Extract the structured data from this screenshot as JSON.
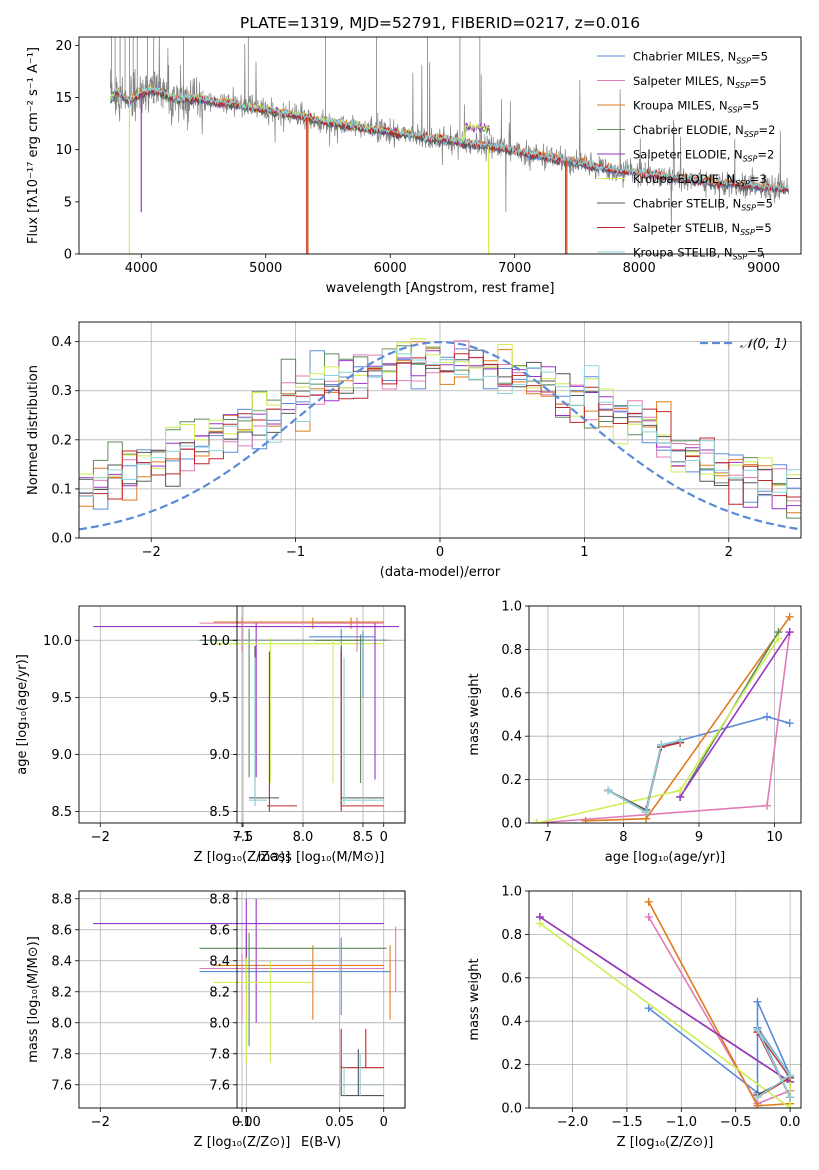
{
  "title": "PLATE=1319, MJD=52791, FIBERID=0217, z=0.016",
  "colors": {
    "chabrier_miles": "#5b8bd8",
    "salpeter_miles": "#e07bb6",
    "kroupa_miles": "#e07b1f",
    "chabrier_elodie": "#5f8c5a",
    "salpeter_elodie": "#9b35c6",
    "kroupa_elodie": "#cdee55",
    "chabrier_stelib": "#555555",
    "salpeter_stelib": "#c0262a",
    "kroupa_stelib": "#8fd3d8",
    "data": "#808080",
    "normal": "#5b8bd8"
  },
  "legend": [
    {
      "key": "chabrier_miles",
      "label": "Chabrier MILES, N",
      "sub": "SSP",
      "val": "=5"
    },
    {
      "key": "salpeter_miles",
      "label": "Salpeter MILES, N",
      "sub": "SSP",
      "val": "=5"
    },
    {
      "key": "kroupa_miles",
      "label": "Kroupa MILES, N",
      "sub": "SSP",
      "val": "=5"
    },
    {
      "key": "chabrier_elodie",
      "label": "Chabrier ELODIE, N",
      "sub": "SSP",
      "val": "=2"
    },
    {
      "key": "salpeter_elodie",
      "label": "Salpeter ELODIE, N",
      "sub": "SSP",
      "val": "=2"
    },
    {
      "key": "kroupa_elodie",
      "label": "Kroupa ELODIE, N",
      "sub": "SSP",
      "val": "=3"
    },
    {
      "key": "chabrier_stelib",
      "label": "Chabrier STELIB, N",
      "sub": "SSP",
      "val": "=5"
    },
    {
      "key": "salpeter_stelib",
      "label": "Salpeter STELIB, N",
      "sub": "SSP",
      "val": "=5"
    },
    {
      "key": "kroupa_stelib",
      "label": "Kroupa STELIB, N",
      "sub": "SSP",
      "val": "=5"
    }
  ],
  "chart_data": [
    {
      "id": "spectrum",
      "type": "line",
      "xlabel": "wavelength [Angstrom, rest frame]",
      "ylabel": "Flux [fλ10⁻¹⁷ erg cm⁻² s⁻¹ A⁻¹]",
      "xlim": [
        3500,
        9300
      ],
      "ylim": [
        0,
        20.8
      ],
      "xticks": [
        4000,
        5000,
        6000,
        7000,
        8000,
        9000
      ],
      "yticks": [
        0,
        5,
        10,
        15,
        20
      ],
      "continuum": {
        "wavelength": [
          3750,
          3800,
          3900,
          4000,
          4100,
          4200,
          4300,
          4400,
          4500,
          4600,
          4700,
          4800,
          4900,
          5000,
          5100,
          5200,
          5300,
          5400,
          5500,
          5600,
          5700,
          5800,
          5900,
          6000,
          6100,
          6200,
          6300,
          6400,
          6500,
          6600,
          6700,
          6800,
          6900,
          7000,
          7100,
          7200,
          7300,
          7400,
          7500,
          7600,
          7700,
          7800,
          7900,
          8000,
          8100,
          8200,
          8300,
          8400,
          8500,
          8600,
          8700,
          8800,
          8900,
          9000,
          9100,
          9200
        ],
        "flux": [
          14.8,
          15.6,
          14.6,
          15.4,
          15.7,
          15.3,
          14.7,
          15.0,
          14.8,
          14.5,
          14.4,
          14.2,
          14.0,
          13.8,
          13.6,
          13.3,
          13.2,
          12.8,
          12.6,
          12.4,
          12.3,
          12.0,
          11.9,
          11.7,
          11.5,
          11.4,
          11.1,
          11.0,
          10.9,
          10.6,
          10.5,
          10.3,
          10.1,
          9.9,
          9.6,
          9.4,
          9.2,
          9.0,
          8.8,
          8.4,
          8.3,
          8.0,
          7.9,
          7.8,
          7.6,
          7.4,
          7.3,
          7.2,
          7.0,
          6.8,
          6.8,
          6.6,
          6.5,
          6.4,
          6.3,
          6.2
        ]
      }
    },
    {
      "id": "residuals",
      "type": "area",
      "xlabel": "(data-model)/error",
      "ylabel": "Normed distribution",
      "xlim": [
        -2.5,
        2.5
      ],
      "ylim": [
        0,
        0.44
      ],
      "xticks": [
        -2,
        -1,
        0,
        1,
        2
      ],
      "yticks": [
        0,
        0.1,
        0.2,
        0.3,
        0.4
      ],
      "legend_label": "𝒩(0, 1)",
      "bin_width": 0.1,
      "bin_start": -2.5
    },
    {
      "id": "age_vs_Z",
      "type": "scatter",
      "xlabel": "Z [log₁₀(Z/Z⊙)]",
      "ylabel": "age  [log₁₀(age/yr)]",
      "xlim": [
        -2.15,
        0.15
      ],
      "ylim": [
        8.4,
        10.3
      ],
      "xticks": [
        -2,
        -1,
        0
      ],
      "yticks": [
        8.5,
        9.0,
        9.5,
        10.0
      ]
    },
    {
      "id": "age_vs_mass",
      "type": "scatter",
      "xlabel": "mass [log₁₀(M/M⊙)]",
      "xlim": [
        7.45,
        8.85
      ],
      "ylim": [
        8.4,
        10.3
      ],
      "xticks": [
        7.5,
        8.0,
        8.5
      ],
      "yticks": [
        8.5,
        9.0,
        9.5,
        10.0
      ]
    },
    {
      "id": "weight_vs_age",
      "type": "line",
      "xlabel": "age  [log₁₀(age/yr)]",
      "ylabel": "mass weight",
      "xlim": [
        6.75,
        10.35
      ],
      "ylim": [
        0,
        1
      ],
      "xticks": [
        7,
        8,
        9,
        10
      ],
      "yticks": [
        0,
        0.2,
        0.4,
        0.6,
        0.8,
        1.0
      ],
      "series": [
        {
          "key": "chabrier_miles",
          "x": [
            7.8,
            8.3,
            8.5,
            8.75,
            9.9,
            10.2
          ],
          "y": [
            0.15,
            0.05,
            0.35,
            0.38,
            0.49,
            0.46
          ]
        },
        {
          "key": "salpeter_miles",
          "x": [
            6.85,
            9.9,
            10.2
          ],
          "y": [
            0.0,
            0.08,
            0.88
          ]
        },
        {
          "key": "kroupa_miles",
          "x": [
            7.5,
            8.3,
            10.2
          ],
          "y": [
            0.01,
            0.02,
            0.95
          ]
        },
        {
          "key": "chabrier_elodie",
          "x": [
            8.75,
            10.05
          ],
          "y": [
            0.12,
            0.88
          ]
        },
        {
          "key": "salpeter_elodie",
          "x": [
            8.75,
            10.2
          ],
          "y": [
            0.12,
            0.88
          ]
        },
        {
          "key": "kroupa_elodie",
          "x": [
            6.85,
            8.75,
            10.05
          ],
          "y": [
            0.0,
            0.15,
            0.85
          ]
        },
        {
          "key": "chabrier_stelib",
          "x": [
            7.8,
            8.3,
            8.5,
            8.75
          ],
          "y": [
            0.15,
            0.06,
            0.36,
            0.38
          ]
        },
        {
          "key": "salpeter_stelib",
          "x": [
            7.8,
            8.3,
            8.5,
            8.75
          ],
          "y": [
            0.15,
            0.05,
            0.35,
            0.37
          ]
        },
        {
          "key": "kroupa_stelib",
          "x": [
            7.8,
            8.3,
            8.5,
            8.75
          ],
          "y": [
            0.15,
            0.05,
            0.36,
            0.38
          ]
        }
      ]
    },
    {
      "id": "mass_vs_Z",
      "type": "scatter",
      "xlabel": "Z [log₁₀(Z/Z⊙)]",
      "ylabel": "mass [log₁₀(M/M⊙)]",
      "xlim": [
        -2.15,
        0.15
      ],
      "ylim": [
        7.45,
        8.85
      ],
      "xticks": [
        -2,
        -1,
        0
      ],
      "yticks": [
        7.6,
        7.8,
        8.0,
        8.2,
        8.4,
        8.6,
        8.8
      ]
    },
    {
      "id": "mass_vs_EBV",
      "type": "scatter",
      "xlabel": "E(B-V)",
      "xlim": [
        -0.005,
        0.085
      ],
      "ylim": [
        7.45,
        8.85
      ],
      "xticks": [
        0.0,
        0.05
      ],
      "yticks": [
        7.6,
        7.8,
        8.0,
        8.2,
        8.4,
        8.6,
        8.8
      ]
    },
    {
      "id": "weight_vs_Z",
      "type": "line",
      "xlabel": "Z [log₁₀(Z/Z⊙)]",
      "ylabel": "mass weight",
      "xlim": [
        -2.4,
        0.1
      ],
      "ylim": [
        0,
        1
      ],
      "xticks": [
        -2.0,
        -1.5,
        -1.0,
        -0.5,
        0.0
      ],
      "yticks": [
        0,
        0.2,
        0.4,
        0.6,
        0.8,
        1.0
      ],
      "series": [
        {
          "key": "chabrier_miles",
          "x": [
            -1.3,
            -0.3,
            -0.3,
            0.0,
            -0.3,
            0.0
          ],
          "y": [
            0.46,
            0.07,
            0.49,
            0.15,
            0.37,
            0.05
          ]
        },
        {
          "key": "salpeter_miles",
          "x": [
            -1.3,
            -0.3,
            0.0
          ],
          "y": [
            0.88,
            0.02,
            0.08
          ]
        },
        {
          "key": "kroupa_miles",
          "x": [
            -1.3,
            -0.3,
            0.0
          ],
          "y": [
            0.95,
            0.01,
            0.02
          ]
        },
        {
          "key": "chabrier_elodie",
          "x": [
            -2.3,
            0.0
          ],
          "y": [
            0.88,
            0.12
          ]
        },
        {
          "key": "salpeter_elodie",
          "x": [
            -2.3,
            0.0
          ],
          "y": [
            0.88,
            0.12
          ]
        },
        {
          "key": "kroupa_elodie",
          "x": [
            -2.3,
            0.0,
            0.0
          ],
          "y": [
            0.85,
            0.0,
            0.15
          ]
        },
        {
          "key": "chabrier_stelib",
          "x": [
            -0.3,
            0.0,
            -0.3,
            0.0
          ],
          "y": [
            0.06,
            0.14,
            0.36,
            0.05
          ]
        },
        {
          "key": "salpeter_stelib",
          "x": [
            -0.3,
            0.0,
            -0.3,
            0.0
          ],
          "y": [
            0.05,
            0.14,
            0.35,
            0.05
          ]
        },
        {
          "key": "kroupa_stelib",
          "x": [
            -0.3,
            0.0,
            -0.3,
            0.0
          ],
          "y": [
            0.05,
            0.15,
            0.36,
            0.05
          ]
        }
      ]
    }
  ]
}
